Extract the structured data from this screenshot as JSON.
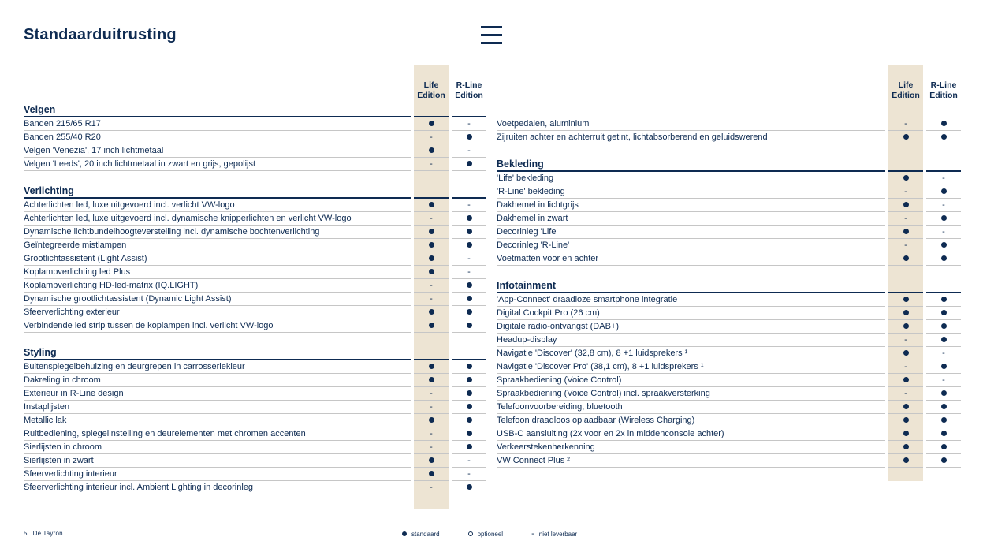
{
  "title": "Standaarduitrusting",
  "editions": [
    "Life Edition",
    "R-Line Edition"
  ],
  "colors": {
    "navy": "#0e2b52",
    "beige": "#ede4d3",
    "row_line": "#c6c6c6"
  },
  "symbols": {
    "standard": "standaard",
    "optional": "optioneel",
    "not_available": "niet leverbaar"
  },
  "footer": {
    "page_number": "5",
    "doc_title": "De Tayron"
  },
  "legend": [
    {
      "symbol": "standard",
      "label": "standaard"
    },
    {
      "symbol": "optional",
      "label": "optioneel"
    },
    {
      "symbol": "not_available",
      "label": "niet leverbaar"
    }
  ],
  "left_table": {
    "sections": [
      {
        "title": "Velgen",
        "rows": [
          {
            "label": "Banden 215/65 R17",
            "life": "s",
            "rline": "n"
          },
          {
            "label": "Banden 255/40 R20",
            "life": "n",
            "rline": "s"
          },
          {
            "label": "Velgen 'Venezia', 17 inch lichtmetaal",
            "life": "s",
            "rline": "n"
          },
          {
            "label": "Velgen 'Leeds', 20 inch lichtmetaal in zwart en grijs, gepolijst",
            "life": "n",
            "rline": "s"
          }
        ]
      },
      {
        "title": "Verlichting",
        "rows": [
          {
            "label": "Achterlichten led, luxe uitgevoerd incl. verlicht VW-logo",
            "life": "s",
            "rline": "n"
          },
          {
            "label": "Achterlichten led, luxe uitgevoerd incl. dynamische knipperlichten en verlicht VW-logo",
            "life": "n",
            "rline": "s"
          },
          {
            "label": "Dynamische lichtbundelhoogteverstelling incl. dynamische bochtenverlichting",
            "life": "s",
            "rline": "s"
          },
          {
            "label": "Geïntegreerde mistlampen",
            "life": "s",
            "rline": "s"
          },
          {
            "label": "Grootlichtassistent (Light Assist)",
            "life": "s",
            "rline": "n"
          },
          {
            "label": "Koplampverlichting led Plus",
            "life": "s",
            "rline": "n"
          },
          {
            "label": "Koplampverlichting HD-led-matrix (IQ.LIGHT)",
            "life": "n",
            "rline": "s"
          },
          {
            "label": "Dynamische grootlichtassistent (Dynamic Light Assist)",
            "life": "n",
            "rline": "s"
          },
          {
            "label": "Sfeerverlichting exterieur",
            "life": "s",
            "rline": "s"
          },
          {
            "label": "Verbindende led strip tussen de koplampen incl. verlicht VW-logo",
            "life": "s",
            "rline": "s"
          }
        ]
      },
      {
        "title": "Styling",
        "rows": [
          {
            "label": "Buitenspiegelbehuizing en deurgrepen in carrosseriekleur",
            "life": "s",
            "rline": "s"
          },
          {
            "label": "Dakreling in chroom",
            "life": "s",
            "rline": "s"
          },
          {
            "label": "Exterieur in R-Line design",
            "life": "n",
            "rline": "s"
          },
          {
            "label": "Instaplijsten",
            "life": "n",
            "rline": "s"
          },
          {
            "label": "Metallic lak",
            "life": "s",
            "rline": "s"
          },
          {
            "label": "Ruitbediening, spiegelinstelling en deurelementen met chromen accenten",
            "life": "n",
            "rline": "s"
          },
          {
            "label": "Sierlijsten in chroom",
            "life": "n",
            "rline": "s"
          },
          {
            "label": "Sierlijsten in zwart",
            "life": "s",
            "rline": "n"
          },
          {
            "label": "Sfeerverlichting interieur",
            "life": "s",
            "rline": "n"
          },
          {
            "label": "Sfeerverlichting interieur incl. Ambient Lighting in decorinleg",
            "life": "n",
            "rline": "s"
          }
        ]
      }
    ]
  },
  "right_table": {
    "sections": [
      {
        "title": "",
        "rows": [
          {
            "label": "Voetpedalen, aluminium",
            "life": "n",
            "rline": "s"
          },
          {
            "label": "Zijruiten achter en achterruit getint, lichtabsorberend en geluidswerend",
            "life": "s",
            "rline": "s"
          }
        ]
      },
      {
        "title": "Bekleding",
        "rows": [
          {
            "label": "'Life' bekleding",
            "life": "s",
            "rline": "n"
          },
          {
            "label": "'R-Line' bekleding",
            "life": "n",
            "rline": "s"
          },
          {
            "label": "Dakhemel in lichtgrijs",
            "life": "s",
            "rline": "n"
          },
          {
            "label": "Dakhemel in zwart",
            "life": "n",
            "rline": "s"
          },
          {
            "label": "Decorinleg 'Life'",
            "life": "s",
            "rline": "n"
          },
          {
            "label": "Decorinleg 'R-Line'",
            "life": "n",
            "rline": "s"
          },
          {
            "label": "Voetmatten voor en achter",
            "life": "s",
            "rline": "s"
          }
        ]
      },
      {
        "title": "Infotainment",
        "rows": [
          {
            "label": "'App-Connect' draadloze smartphone integratie",
            "life": "s",
            "rline": "s"
          },
          {
            "label": "Digital Cockpit Pro (26 cm)",
            "life": "s",
            "rline": "s"
          },
          {
            "label": "Digitale radio-ontvangst (DAB+)",
            "life": "s",
            "rline": "s"
          },
          {
            "label": "Headup-display",
            "life": "n",
            "rline": "s"
          },
          {
            "label": "Navigatie 'Discover' (32,8 cm), 8 +1 luidsprekers ¹",
            "life": "s",
            "rline": "n"
          },
          {
            "label": "Navigatie 'Discover Pro' (38,1 cm), 8 +1 luidsprekers ¹",
            "life": "n",
            "rline": "s"
          },
          {
            "label": "Spraakbediening (Voice Control)",
            "life": "s",
            "rline": "n"
          },
          {
            "label": "Spraakbediening (Voice Control) incl. spraakversterking",
            "life": "n",
            "rline": "s"
          },
          {
            "label": "Telefoonvoorbereiding, bluetooth",
            "life": "s",
            "rline": "s"
          },
          {
            "label": "Telefoon draadloos oplaadbaar (Wireless Charging)",
            "life": "s",
            "rline": "s"
          },
          {
            "label": "USB-C aansluiting (2x voor en 2x in middenconsole achter)",
            "life": "s",
            "rline": "s"
          },
          {
            "label": "Verkeerstekenherkenning",
            "life": "s",
            "rline": "s"
          },
          {
            "label": "VW Connect Plus ²",
            "life": "s",
            "rline": "s"
          }
        ]
      }
    ]
  }
}
